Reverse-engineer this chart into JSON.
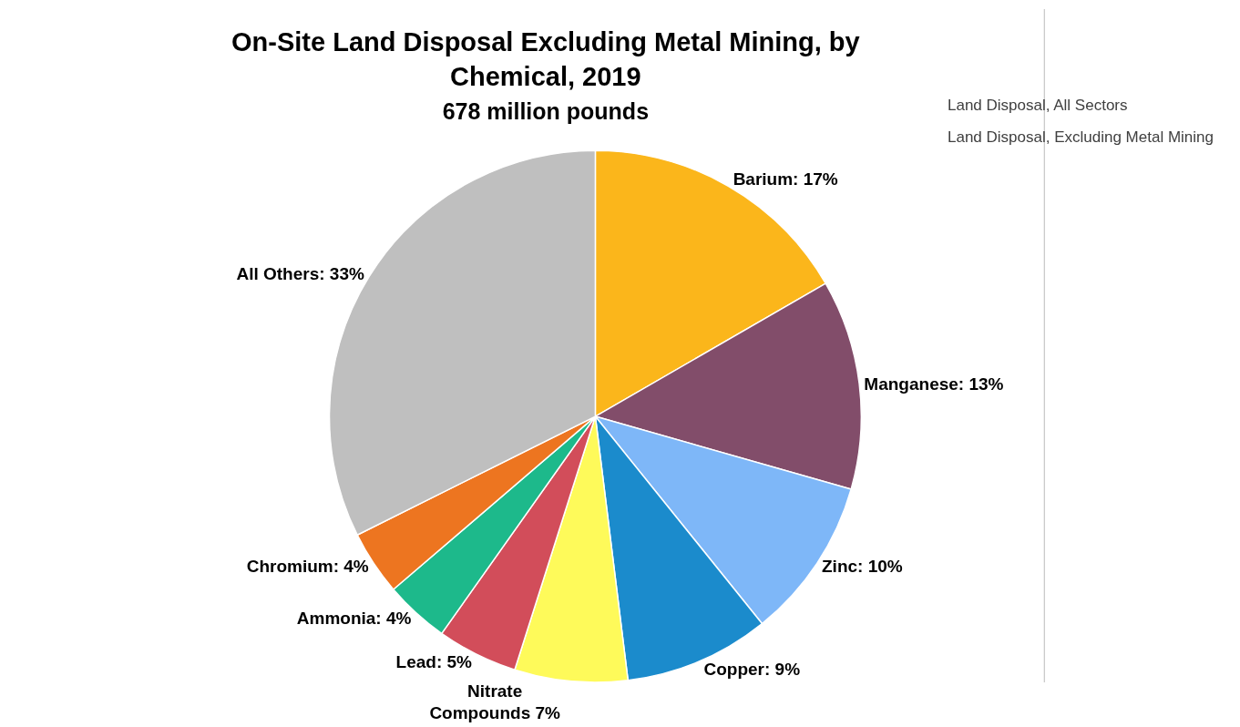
{
  "chart_data": {
    "type": "pie",
    "title": "On-Site Land Disposal Excluding Metal Mining, by\nChemical, 2019",
    "subtitle": "678 million pounds",
    "categories": [
      "Barium: 17%",
      "Manganese: 13%",
      "Zinc: 10%",
      "Copper: 9%",
      "Nitrate\nCompounds 7%",
      "Lead: 5%",
      "Ammonia: 4%",
      "Chromium: 4%",
      "All Others: 33%"
    ],
    "values": [
      17,
      13,
      10,
      9,
      7,
      5,
      4,
      4,
      33
    ],
    "colors": [
      "#fbb61b",
      "#824d6a",
      "#7eb7f8",
      "#1b8bcc",
      "#fefa5a",
      "#d24d5a",
      "#1db98b",
      "#ed7520",
      "#bfbfbf"
    ],
    "annotations": [
      "Land Disposal, All Sectors",
      "Land Disposal, Excluding Metal Mining"
    ]
  }
}
